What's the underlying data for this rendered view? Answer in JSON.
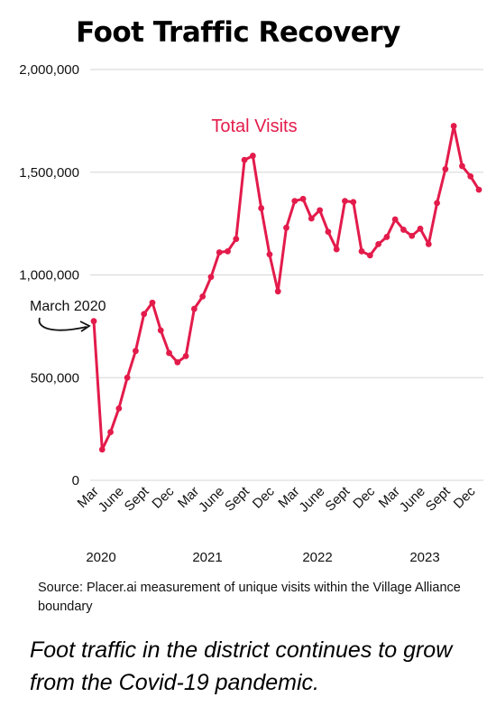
{
  "chart_data": {
    "type": "line",
    "title": "Foot Traffic Recovery",
    "series": [
      {
        "name": "Total Visits",
        "color": "#e31b4b",
        "values": [
          775000,
          150000,
          235000,
          350000,
          500000,
          630000,
          810000,
          865000,
          730000,
          620000,
          575000,
          605000,
          835000,
          895000,
          990000,
          1110000,
          1115000,
          1175000,
          1560000,
          1580000,
          1325000,
          1100000,
          920000,
          1230000,
          1360000,
          1370000,
          1275000,
          1315000,
          1210000,
          1125000,
          1360000,
          1355000,
          1115000,
          1095000,
          1150000,
          1185000,
          1270000,
          1220000,
          1190000,
          1225000,
          1150000,
          1350000,
          1515000,
          1725000,
          1530000,
          1480000,
          1415000
        ]
      }
    ],
    "x_start": "Mar 2020",
    "x_end": "Jan 2024",
    "x_tick_labels": [
      "Mar",
      "June",
      "Sept",
      "Dec",
      "Mar",
      "June",
      "Sept",
      "Dec",
      "Mar",
      "June",
      "Sept",
      "Dec",
      "Mar",
      "June",
      "Sept",
      "Dec"
    ],
    "year_labels": [
      "2020",
      "2021",
      "2022",
      "2023"
    ],
    "y_tick_labels": [
      "0",
      "500,000",
      "1,000,000",
      "1,500,000",
      "2,000,000"
    ],
    "ylim": [
      0,
      2000000
    ],
    "grid": true,
    "annotations": [
      {
        "text": "March 2020",
        "x": "Mar 2020",
        "y": 775000
      }
    ],
    "series_label": "Total Visits"
  },
  "source_text": "Source: Placer.ai measurement of unique visits within the Village Alliance boundary",
  "caption": "Foot traffic in the district continues to grow from the Covid-19 pandemic."
}
